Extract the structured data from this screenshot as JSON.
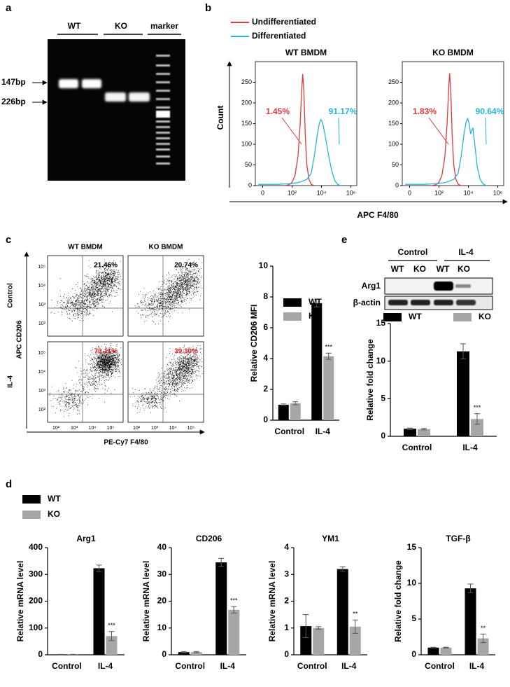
{
  "panels": [
    "a",
    "b",
    "c",
    "d",
    "e"
  ],
  "gel": {
    "lanes": [
      "WT",
      "KO",
      "marker"
    ],
    "sizes": [
      "147bp",
      "226bp"
    ]
  },
  "blot": {
    "groups": [
      "Control",
      "IL-4"
    ],
    "lanes": [
      "WT",
      "KO",
      "WT",
      "KO"
    ],
    "rows": [
      "Arg1",
      "β-actin"
    ]
  },
  "c_flow": {
    "columns": [
      "WT BMDM",
      "KO BMDM"
    ],
    "rows": [
      "Control",
      "IL-4"
    ],
    "percentages": [
      [
        "21.46%",
        "20.74%"
      ],
      [
        "73.11%",
        "39.30%"
      ]
    ],
    "ticks": [
      "10²",
      "10³",
      "10⁴",
      "10⁵"
    ],
    "y_label": "APC CD206",
    "x_label": "PE-Cy7 F4/80"
  },
  "chart_data": [
    {
      "type": "line",
      "title": "WT BMDM",
      "y_label": "Count",
      "x_label": "APC F4/80",
      "xlim": [
        -0.5,
        6.4
      ],
      "ylim": [
        0,
        300
      ],
      "xticks": [
        0,
        {
          "value": 2,
          "label": "10²"
        },
        {
          "value": 4,
          "label": "10⁴"
        },
        {
          "value": 6,
          "label": "10⁶"
        }
      ],
      "yticks": [
        0,
        50,
        100,
        150,
        200,
        250
      ],
      "series": [
        {
          "name": "Undifferentiated",
          "color": "#e0393e",
          "gate_label": "1.45%",
          "x": [
            1.5,
            1.8,
            2.0,
            2.2,
            2.4,
            2.55,
            2.65,
            2.72,
            2.8,
            2.9,
            3.0,
            3.15,
            3.3,
            3.5
          ],
          "values": [
            0,
            2,
            8,
            25,
            70,
            150,
            230,
            270,
            230,
            120,
            50,
            15,
            3,
            0
          ]
        },
        {
          "name": "Differentiated",
          "color": "#27b4d8",
          "gate_label": "91.17%",
          "x": [
            -0.3,
            1,
            2,
            2.5,
            3,
            3.3,
            3.5,
            3.7,
            3.85,
            3.95,
            4.05,
            4.15,
            4.3,
            4.5,
            4.7,
            4.9,
            5.1,
            5.3
          ],
          "values": [
            3,
            3,
            5,
            8,
            15,
            30,
            70,
            120,
            150,
            160,
            155,
            140,
            110,
            70,
            35,
            12,
            3,
            0
          ]
        }
      ]
    },
    {
      "type": "line",
      "title": "KO BMDM",
      "xlim": [
        -0.5,
        6.4
      ],
      "ylim": [
        0,
        300
      ],
      "xticks": [
        0,
        {
          "value": 2,
          "label": "10²"
        },
        {
          "value": 4,
          "label": "10⁴"
        },
        {
          "value": 6,
          "label": "10⁶"
        }
      ],
      "yticks": [
        0,
        50,
        100,
        150,
        200,
        250
      ],
      "series": [
        {
          "name": "Undifferentiated",
          "color": "#e0393e",
          "gate_label": "1.83%",
          "x": [
            1.5,
            1.8,
            2.0,
            2.2,
            2.4,
            2.55,
            2.65,
            2.72,
            2.8,
            2.9,
            3.0,
            3.15,
            3.3,
            3.5
          ],
          "values": [
            0,
            2,
            8,
            25,
            70,
            150,
            230,
            272,
            230,
            120,
            50,
            15,
            3,
            0
          ]
        },
        {
          "name": "Differentiated",
          "color": "#27b4d8",
          "gate_label": "90.64%",
          "x": [
            -0.3,
            1,
            2,
            2.5,
            3,
            3.3,
            3.5,
            3.7,
            3.85,
            3.95,
            4.05,
            4.15,
            4.3,
            4.45,
            4.6,
            4.8,
            5.0,
            5.2
          ],
          "values": [
            3,
            3,
            5,
            8,
            15,
            30,
            70,
            125,
            155,
            162,
            150,
            125,
            140,
            95,
            45,
            15,
            4,
            0
          ]
        }
      ]
    },
    {
      "type": "bar",
      "y_label": "Relative CD206 MFI",
      "categories": [
        "Control",
        "IL-4"
      ],
      "ylim": [
        0,
        10
      ],
      "yticks": [
        0,
        2,
        4,
        6,
        8,
        10
      ],
      "legend": true,
      "series": [
        {
          "name": "WT",
          "color": "#000000",
          "values": [
            1.0,
            7.6
          ],
          "errors": [
            0.05,
            0.25
          ]
        },
        {
          "name": "KO",
          "color": "#a6a6a6",
          "values": [
            1.1,
            4.15
          ],
          "errors": [
            0.1,
            0.2
          ],
          "significance": [
            null,
            "***"
          ]
        }
      ]
    },
    {
      "type": "bar",
      "y_label": "Relative fold change",
      "categories": [
        "Control",
        "IL-4"
      ],
      "ylim": [
        0,
        15
      ],
      "yticks": [
        0,
        5,
        10,
        15
      ],
      "legend": true,
      "series": [
        {
          "name": "WT",
          "color": "#000000",
          "values": [
            1.0,
            11.3
          ],
          "errors": [
            0.1,
            1.0
          ]
        },
        {
          "name": "KO",
          "color": "#a6a6a6",
          "values": [
            0.95,
            2.3
          ],
          "errors": [
            0.1,
            0.7
          ],
          "significance": [
            null,
            "***"
          ]
        }
      ]
    },
    {
      "type": "bar",
      "title": "Arg1",
      "y_label": "Relative mRNA level",
      "categories": [
        "Control",
        "IL-4"
      ],
      "ylim": [
        0,
        400
      ],
      "yticks": [
        0,
        100,
        200,
        300,
        400
      ],
      "legend": true,
      "series": [
        {
          "name": "WT",
          "color": "#000000",
          "values": [
            1,
            323
          ],
          "errors": [
            0.5,
            12
          ]
        },
        {
          "name": "KO",
          "color": "#a6a6a6",
          "values": [
            1,
            70
          ],
          "errors": [
            0.5,
            17
          ],
          "significance": [
            null,
            "***"
          ]
        }
      ]
    },
    {
      "type": "bar",
      "title": "CD206",
      "y_label": "Relative mRNA level",
      "categories": [
        "Control",
        "IL-4"
      ],
      "ylim": [
        0,
        40
      ],
      "yticks": [
        0,
        10,
        20,
        30,
        40
      ],
      "legend": false,
      "series": [
        {
          "name": "WT",
          "color": "#000000",
          "values": [
            1,
            34.5
          ],
          "errors": [
            0.2,
            1.5
          ]
        },
        {
          "name": "KO",
          "color": "#a6a6a6",
          "values": [
            1,
            16.8
          ],
          "errors": [
            0.2,
            1.2
          ],
          "significance": [
            null,
            "***"
          ]
        }
      ]
    },
    {
      "type": "bar",
      "title": "YM1",
      "y_label": "Relative mRNA level",
      "categories": [
        "Control",
        "IL-4"
      ],
      "ylim": [
        0,
        4
      ],
      "yticks": [
        0,
        1,
        2,
        3,
        4
      ],
      "legend": false,
      "series": [
        {
          "name": "WT",
          "color": "#000000",
          "values": [
            1.07,
            3.2
          ],
          "errors": [
            0.43,
            0.08
          ]
        },
        {
          "name": "KO",
          "color": "#a6a6a6",
          "values": [
            1.0,
            1.05
          ],
          "errors": [
            0.05,
            0.25
          ],
          "significance": [
            null,
            "**"
          ]
        }
      ]
    },
    {
      "type": "bar",
      "title": "TGF-β",
      "y_label": "Relative fold change",
      "categories": [
        "Control",
        "IL-4"
      ],
      "ylim": [
        0,
        15
      ],
      "yticks": [
        0,
        5,
        10,
        15
      ],
      "legend": false,
      "series": [
        {
          "name": "WT",
          "color": "#000000",
          "values": [
            1.0,
            9.3
          ],
          "errors": [
            0.05,
            0.6
          ]
        },
        {
          "name": "KO",
          "color": "#a6a6a6",
          "values": [
            1.0,
            2.3
          ],
          "errors": [
            0.05,
            0.6
          ],
          "significance": [
            null,
            "**"
          ]
        }
      ]
    }
  ]
}
